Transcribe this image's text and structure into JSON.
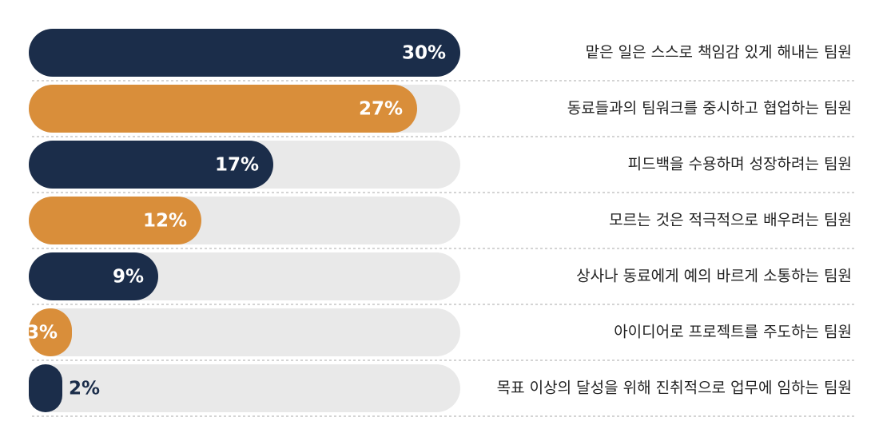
{
  "chart_data": {
    "type": "hbar",
    "categories": [
      "맡은 일은 스스로 책임감 있게 해내는 팀원",
      "동료들과의 팀워크를 중시하고 협업하는 팀원",
      "피드백을 수용하며 성장하려는 팀원",
      "모르는 것은 적극적으로 배우려는 팀원",
      "상사나 동료에게 예의 바르게 소통하는 팀원",
      "아이디어로 프로젝트를 주도하는 팀원",
      "목표 이상의 달성을 위해 진취적으로 업무에 임하는 팀원"
    ],
    "values": [
      30,
      27,
      17,
      12,
      9,
      3,
      2
    ],
    "value_labels": [
      "30%",
      "27%",
      "17%",
      "12%",
      "9%",
      "3%",
      "2%"
    ],
    "colors": [
      "#1b2d4a",
      "#d98e3a",
      "#1b2d4a",
      "#d98e3a",
      "#1b2d4a",
      "#d98e3a",
      "#1b2d4a"
    ],
    "xlim": [
      0,
      30
    ]
  }
}
